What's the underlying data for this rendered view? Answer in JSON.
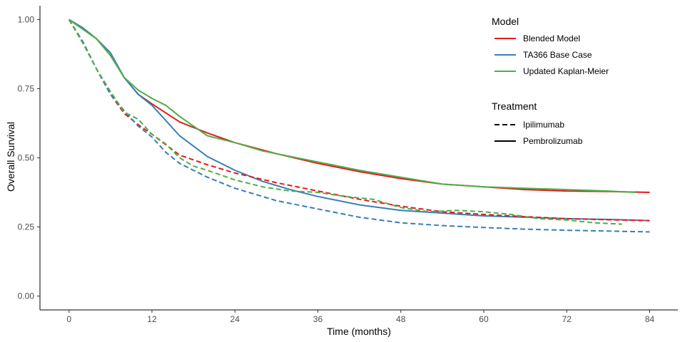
{
  "chart_data": {
    "type": "line",
    "title": "",
    "xlabel": "Time (months)",
    "ylabel": "Overall Survival",
    "xlim": [
      0,
      84
    ],
    "ylim": [
      0,
      1
    ],
    "x_ticks": [
      0,
      12,
      24,
      36,
      48,
      60,
      72,
      84
    ],
    "y_ticks": [
      0,
      0.25,
      0.5,
      0.75,
      1.0
    ],
    "x_tick_labels": [
      "0",
      "12",
      "24",
      "36",
      "48",
      "60",
      "72",
      "84"
    ],
    "y_tick_labels": [
      "0.00",
      "0.25",
      "0.50",
      "0.75",
      "1.00"
    ],
    "grid": false,
    "legend_position": "top-right",
    "legend": {
      "model_title": "Model",
      "models": [
        {
          "label": "Blended Model",
          "color": "#e41a1c"
        },
        {
          "label": "TA366 Base Case",
          "color": "#377eb8"
        },
        {
          "label": "Updated Kaplan-Meier",
          "color": "#4daf4a"
        }
      ],
      "treatment_title": "Treatment",
      "treatments": [
        {
          "label": "Ipilimumab",
          "linetype": "dashed"
        },
        {
          "label": "Pembrolizumab",
          "linetype": "solid"
        }
      ]
    },
    "series": [
      {
        "model": 0,
        "treatment": 1,
        "points": [
          [
            0,
            1.0
          ],
          [
            2,
            0.97
          ],
          [
            4,
            0.93
          ],
          [
            6,
            0.87
          ],
          [
            8,
            0.79
          ],
          [
            10,
            0.73
          ],
          [
            12,
            0.695
          ],
          [
            16,
            0.63
          ],
          [
            20,
            0.59
          ],
          [
            24,
            0.555
          ],
          [
            30,
            0.515
          ],
          [
            36,
            0.48
          ],
          [
            42,
            0.45
          ],
          [
            48,
            0.425
          ],
          [
            54,
            0.405
          ],
          [
            60,
            0.395
          ],
          [
            66,
            0.385
          ],
          [
            72,
            0.38
          ],
          [
            78,
            0.378
          ],
          [
            84,
            0.375
          ]
        ]
      },
      {
        "model": 1,
        "treatment": 1,
        "points": [
          [
            0,
            1.0
          ],
          [
            2,
            0.97
          ],
          [
            4,
            0.93
          ],
          [
            6,
            0.88
          ],
          [
            8,
            0.79
          ],
          [
            10,
            0.73
          ],
          [
            12,
            0.69
          ],
          [
            16,
            0.58
          ],
          [
            20,
            0.505
          ],
          [
            24,
            0.455
          ],
          [
            28,
            0.415
          ],
          [
            32,
            0.385
          ],
          [
            36,
            0.36
          ],
          [
            42,
            0.33
          ],
          [
            48,
            0.31
          ],
          [
            54,
            0.3
          ],
          [
            60,
            0.29
          ],
          [
            66,
            0.285
          ],
          [
            72,
            0.28
          ],
          [
            78,
            0.277
          ],
          [
            84,
            0.273
          ]
        ]
      },
      {
        "model": 2,
        "treatment": 1,
        "points": [
          [
            0,
            1.0
          ],
          [
            2,
            0.965
          ],
          [
            4,
            0.93
          ],
          [
            6,
            0.87
          ],
          [
            8,
            0.79
          ],
          [
            10,
            0.745
          ],
          [
            12,
            0.715
          ],
          [
            14,
            0.69
          ],
          [
            16,
            0.65
          ],
          [
            18,
            0.615
          ],
          [
            20,
            0.58
          ],
          [
            24,
            0.555
          ],
          [
            28,
            0.525
          ],
          [
            32,
            0.505
          ],
          [
            36,
            0.485
          ],
          [
            42,
            0.455
          ],
          [
            48,
            0.43
          ],
          [
            54,
            0.405
          ],
          [
            60,
            0.395
          ],
          [
            66,
            0.39
          ],
          [
            72,
            0.385
          ],
          [
            78,
            0.38
          ],
          [
            82,
            0.375
          ]
        ]
      },
      {
        "model": 0,
        "treatment": 0,
        "points": [
          [
            0,
            1.0
          ],
          [
            2,
            0.92
          ],
          [
            4,
            0.82
          ],
          [
            6,
            0.73
          ],
          [
            8,
            0.66
          ],
          [
            10,
            0.62
          ],
          [
            12,
            0.585
          ],
          [
            16,
            0.51
          ],
          [
            20,
            0.475
          ],
          [
            24,
            0.445
          ],
          [
            30,
            0.41
          ],
          [
            36,
            0.38
          ],
          [
            42,
            0.35
          ],
          [
            48,
            0.325
          ],
          [
            54,
            0.305
          ],
          [
            60,
            0.295
          ],
          [
            66,
            0.287
          ],
          [
            72,
            0.28
          ],
          [
            78,
            0.276
          ],
          [
            84,
            0.273
          ]
        ]
      },
      {
        "model": 1,
        "treatment": 0,
        "points": [
          [
            0,
            1.0
          ],
          [
            2,
            0.92
          ],
          [
            4,
            0.82
          ],
          [
            6,
            0.73
          ],
          [
            8,
            0.67
          ],
          [
            10,
            0.615
          ],
          [
            12,
            0.575
          ],
          [
            14,
            0.52
          ],
          [
            16,
            0.48
          ],
          [
            20,
            0.43
          ],
          [
            24,
            0.39
          ],
          [
            30,
            0.345
          ],
          [
            36,
            0.315
          ],
          [
            42,
            0.285
          ],
          [
            48,
            0.265
          ],
          [
            54,
            0.255
          ],
          [
            60,
            0.248
          ],
          [
            66,
            0.242
          ],
          [
            72,
            0.238
          ],
          [
            78,
            0.235
          ],
          [
            84,
            0.232
          ]
        ]
      },
      {
        "model": 2,
        "treatment": 0,
        "points": [
          [
            0,
            1.0
          ],
          [
            2,
            0.915
          ],
          [
            4,
            0.82
          ],
          [
            6,
            0.74
          ],
          [
            8,
            0.665
          ],
          [
            10,
            0.64
          ],
          [
            12,
            0.585
          ],
          [
            14,
            0.55
          ],
          [
            16,
            0.5
          ],
          [
            18,
            0.47
          ],
          [
            20,
            0.455
          ],
          [
            24,
            0.42
          ],
          [
            28,
            0.395
          ],
          [
            32,
            0.38
          ],
          [
            36,
            0.375
          ],
          [
            40,
            0.36
          ],
          [
            44,
            0.35
          ],
          [
            48,
            0.32
          ],
          [
            52,
            0.305
          ],
          [
            56,
            0.31
          ],
          [
            60,
            0.305
          ],
          [
            64,
            0.295
          ],
          [
            68,
            0.28
          ],
          [
            72,
            0.275
          ],
          [
            76,
            0.265
          ],
          [
            80,
            0.26
          ]
        ]
      }
    ]
  }
}
